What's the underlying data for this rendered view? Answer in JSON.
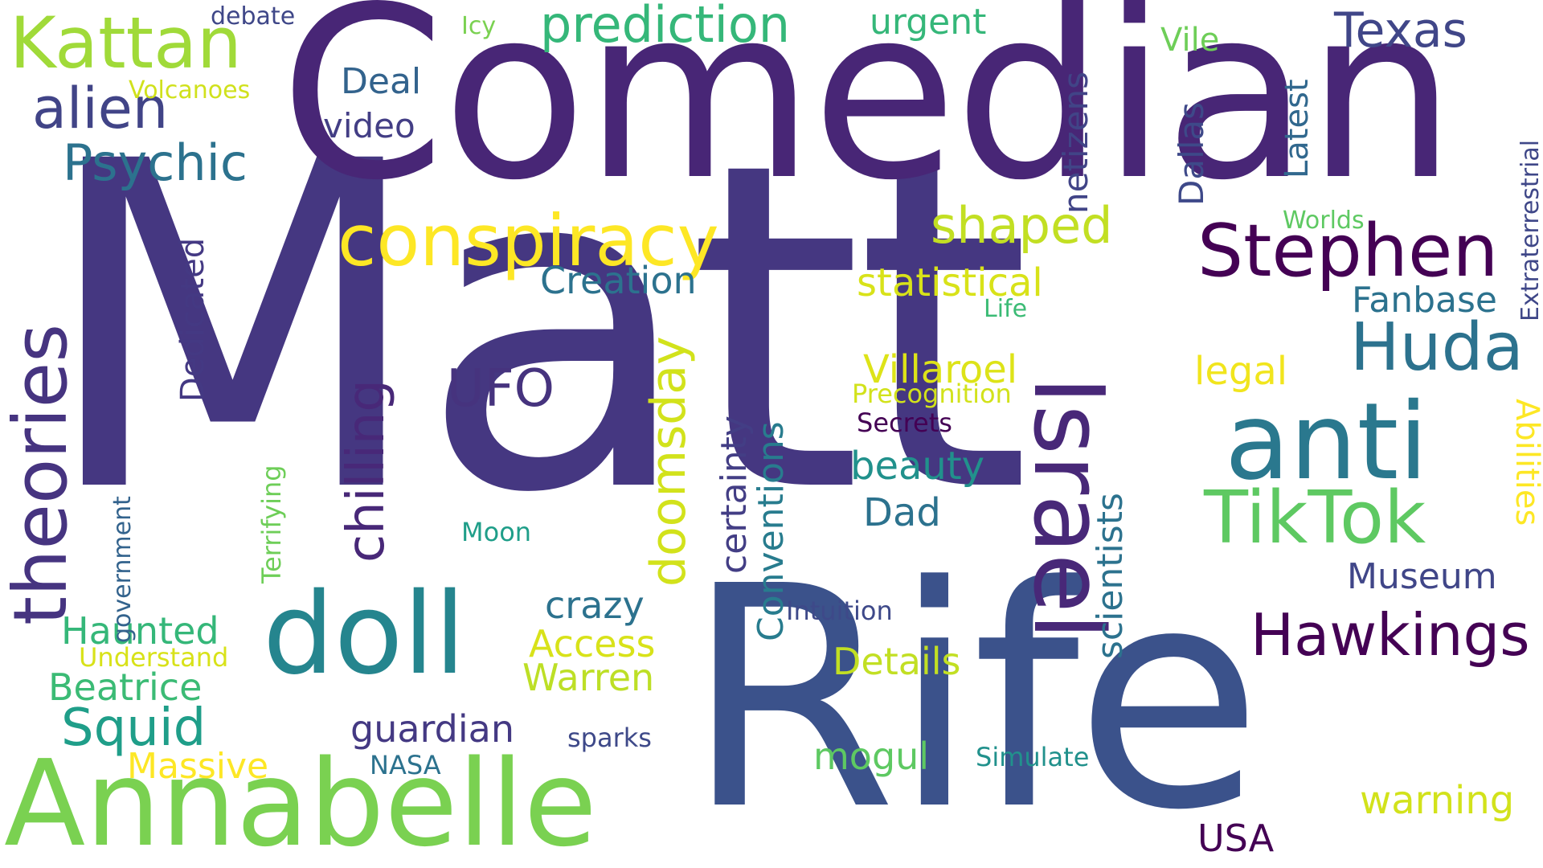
{
  "words": {
    "matt": "Matt",
    "comedian": "Comedian",
    "rife": "Rife",
    "annabelle": "Annabelle",
    "israel": "Israel",
    "anti": "anti",
    "doll": "doll",
    "conspiracy": "conspiracy",
    "stephen": "Stephen",
    "theories": "theories",
    "kattan": "Kattan",
    "tiktok": "TikTok",
    "huda": "Huda",
    "hawkings": "Hawkings",
    "prediction": "prediction",
    "doomsday": "doomsday",
    "chilling": "chilling",
    "alien": "alien",
    "psychic": "Psychic",
    "texas": "Texas",
    "shaped": "shaped",
    "netizens": "netizens",
    "dallas": "Dallas",
    "latest": "Latest",
    "extraterrestrial": "Extraterrestrial",
    "statistical": "statistical",
    "creation": "Creation",
    "ufo": "UFO",
    "dedicated": "Dedicated",
    "deal": "Deal",
    "video": "video",
    "urgent": "urgent",
    "vile": "Vile",
    "icy": "Icy",
    "debate": "debate",
    "volcanoes": "Volcanoes",
    "worlds": "Worlds",
    "fanbase": "Fanbase",
    "life": "Life",
    "villaroel": "Villaroel",
    "legal": "legal",
    "precognition": "Precognition",
    "secrets": "Secrets",
    "certainty": "certainty",
    "conventions": "Conventions",
    "scientists": "scientists",
    "beauty": "beauty",
    "dad": "Dad",
    "abilities": "Abilities",
    "squid": "Squid",
    "haunted": "Haunted",
    "understand": "Understand",
    "beatrice": "Beatrice",
    "massive": "Massive",
    "government": "government",
    "terrifying": "Terrifying",
    "moon": "Moon",
    "crazy": "crazy",
    "access": "Access",
    "warren": "Warren",
    "guardian": "guardian",
    "sparks": "sparks",
    "nasa": "NASA",
    "intuition": "Intuition",
    "details": "Details",
    "mogul": "mogul",
    "simulate": "Simulate",
    "museum": "Museum",
    "warning": "warning",
    "usa": "USA"
  },
  "colors": {
    "background": "#ffffff",
    "palette": [
      "#440154",
      "#472d7b",
      "#3b528b",
      "#2c728e",
      "#21918c",
      "#28ae80",
      "#5ec962",
      "#addc30",
      "#fde725"
    ]
  }
}
